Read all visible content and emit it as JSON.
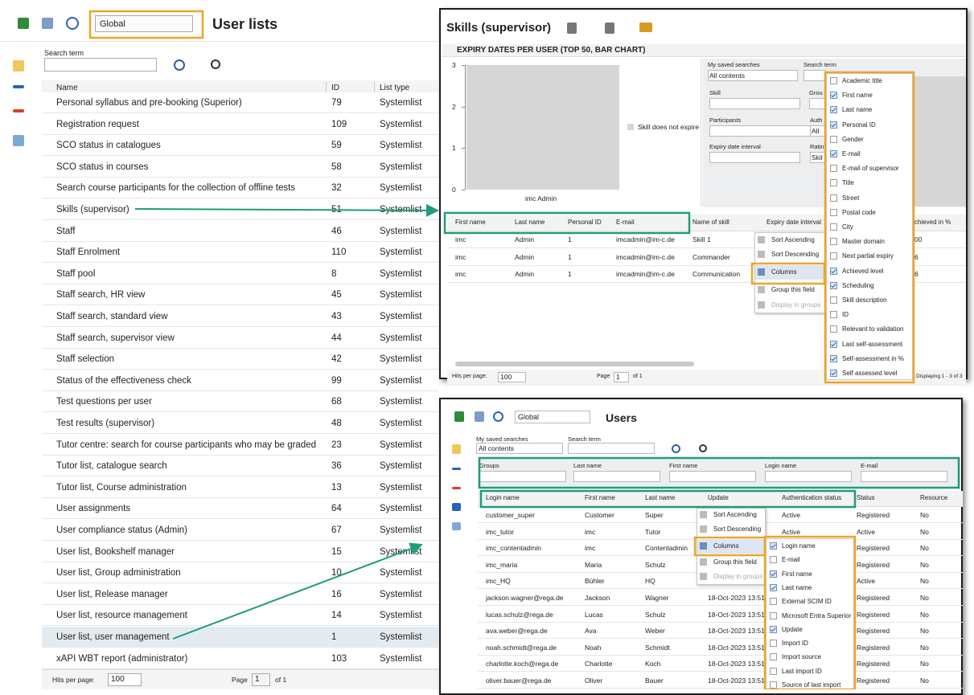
{
  "toolbar": {
    "scope": "Global",
    "title": "User lists"
  },
  "search": {
    "label": "Search term"
  },
  "list_table": {
    "columns": [
      "Name",
      "ID",
      "List type"
    ],
    "rows": [
      [
        "Personal syllabus and pre-booking (Superior)",
        79,
        "Systemlist"
      ],
      [
        "Registration request",
        109,
        "Systemlist"
      ],
      [
        "SCO status in catalogues",
        59,
        "Systemlist"
      ],
      [
        "SCO status in courses",
        58,
        "Systemlist"
      ],
      [
        "Search course participants for the collection of offline tests",
        32,
        "Systemlist"
      ],
      [
        "Skills (supervisor)",
        51,
        "Systemlist"
      ],
      [
        "Staff",
        46,
        "Systemlist"
      ],
      [
        "Staff Enrolment",
        110,
        "Systemlist"
      ],
      [
        "Staff pool",
        8,
        "Systemlist"
      ],
      [
        "Staff search, HR view",
        45,
        "Systemlist"
      ],
      [
        "Staff search, standard view",
        43,
        "Systemlist"
      ],
      [
        "Staff search, supervisor view",
        44,
        "Systemlist"
      ],
      [
        "Staff selection",
        42,
        "Systemlist"
      ],
      [
        "Status of the effectiveness check",
        99,
        "Systemlist"
      ],
      [
        "Test questions per user",
        68,
        "Systemlist"
      ],
      [
        "Test results (supervisor)",
        48,
        "Systemlist"
      ],
      [
        "Tutor centre: search for course participants who may be graded",
        23,
        "Systemlist"
      ],
      [
        "Tutor list, catalogue search",
        36,
        "Systemlist"
      ],
      [
        "Tutor list, Course administration",
        13,
        "Systemlist"
      ],
      [
        "User assignments",
        64,
        "Systemlist"
      ],
      [
        "User compliance status (Admin)",
        67,
        "Systemlist"
      ],
      [
        "User list, Bookshelf manager",
        15,
        "Systemlist"
      ],
      [
        "User list, Group administration",
        10,
        "Systemlist"
      ],
      [
        "User list, Release manager",
        16,
        "Systemlist"
      ],
      [
        "User list, resource management",
        14,
        "Systemlist"
      ],
      [
        "User list, user management",
        1,
        "Systemlist"
      ],
      [
        "xAPI WBT report (administrator)",
        103,
        "Systemlist"
      ]
    ]
  },
  "pagination": {
    "hits_label": "Hits per page:",
    "hits_per_page": 100,
    "page_label": "Page",
    "page": 1,
    "page_of": "of 1"
  },
  "skills_window": {
    "title": "Skills (supervisor)",
    "chart_header": "EXPIRY DATES PER USER (TOP 50, BAR CHART)",
    "chart": {
      "type": "bar",
      "categories": [
        "imc Admin"
      ],
      "values": [
        3
      ],
      "color": "#d6d6d6",
      "ylim": [
        0,
        3
      ],
      "yticks": [
        0,
        1,
        2,
        3
      ],
      "legend": "Skill does not expire"
    },
    "filters": [
      {
        "label": "My saved searches",
        "value": "All contents"
      },
      {
        "label": "Search term"
      },
      {
        "label": "Skill"
      },
      {
        "label": "Grou"
      },
      {
        "label": "Participants"
      },
      {
        "label": "Auth",
        "value": "All"
      },
      {
        "label": "Expiry date interval"
      },
      {
        "label": "Ratin",
        "value": "Skil"
      }
    ],
    "columns": [
      "First name",
      "Last name",
      "Personal ID",
      "E-mail",
      "Name of skill",
      "Expiry date interval",
      "chieved in %"
    ],
    "rows": [
      [
        "imc",
        "Admin",
        1,
        "imcadmin@im-c.de",
        "Skill 1",
        null,
        "00"
      ],
      [
        "imc",
        "Admin",
        1,
        "imcadmin@im-c.de",
        "Commander",
        null,
        "6"
      ],
      [
        "imc",
        "Admin",
        1,
        "imcadmin@im-c.de",
        "Communication",
        null,
        "6"
      ]
    ],
    "menu": [
      "Sort Ascending",
      "Sort Descending",
      "Columns",
      "Group this field",
      "Display in groups"
    ],
    "column_list": [
      {
        "label": "Academic title",
        "checked": false
      },
      {
        "label": "First name",
        "checked": true
      },
      {
        "label": "Last name",
        "checked": true
      },
      {
        "label": "Personal ID",
        "checked": true
      },
      {
        "label": "Gender",
        "checked": false
      },
      {
        "label": "E-mail",
        "checked": true
      },
      {
        "label": "E-mail of supervisor",
        "checked": false
      },
      {
        "label": "Title",
        "checked": false
      },
      {
        "label": "Street",
        "checked": false
      },
      {
        "label": "Postal code",
        "checked": false
      },
      {
        "label": "City",
        "checked": false
      },
      {
        "label": "Master domain",
        "checked": false
      },
      {
        "label": "Next partial expiry",
        "checked": false
      },
      {
        "label": "Achieved level",
        "checked": true
      },
      {
        "label": "Scheduling",
        "checked": true
      },
      {
        "label": "Skill description",
        "checked": false
      },
      {
        "label": "ID",
        "checked": false
      },
      {
        "label": "Relevant to validation",
        "checked": false
      },
      {
        "label": "Last self-assessment",
        "checked": true
      },
      {
        "label": "Self-assessment in %",
        "checked": true
      },
      {
        "label": "Self assessed level",
        "checked": true
      }
    ],
    "pagination": {
      "hits_label": "Hits per page:",
      "hits_per_page": 100,
      "page_label": "Page",
      "page": 1,
      "page_of": "of 1",
      "displaying": "Displaying 1 - 3 of 3"
    }
  },
  "users_window": {
    "scope": "Global",
    "title": "Users",
    "saved_label": "My saved searches",
    "saved_value": "All contents",
    "search_label": "Search term",
    "filters": [
      "Groups",
      "Last name",
      "First name",
      "Login name",
      "E-mail"
    ],
    "columns": [
      "Login name",
      "First name",
      "Last name",
      "Update",
      "Authentication status",
      "Status",
      "Resource"
    ],
    "rows": [
      [
        "customer_super",
        "Customer",
        "Super",
        null,
        "Active",
        "Registered",
        "No"
      ],
      [
        "imc_tutor",
        "imc",
        "Tutor",
        null,
        "Active",
        "Active",
        "No"
      ],
      [
        "imc_contentadmin",
        "imc",
        "Contentadmin",
        null,
        null,
        "Registered",
        "No"
      ],
      [
        "imc_maria",
        "Maria",
        "Schulz",
        null,
        null,
        "Registered",
        "No"
      ],
      [
        "imc_HQ",
        "Bühler",
        "HQ",
        null,
        null,
        "Active",
        "No"
      ],
      [
        "jackson.wagner@rega.de",
        "Jackson",
        "Wagner",
        "18-Oct-2023 13:51",
        null,
        "Registered",
        "No"
      ],
      [
        "lucas.schulz@rega.de",
        "Lucas",
        "Schulz",
        "18-Oct-2023 13:51",
        null,
        "Registered",
        "No"
      ],
      [
        "ava.weber@rega.de",
        "Ava",
        "Weber",
        "18-Oct-2023 13:51",
        null,
        "Registered",
        "No"
      ],
      [
        "noah.schmidt@rega.de",
        "Noah",
        "Schmidt",
        "18-Oct-2023 13:51",
        null,
        "Registered",
        "No"
      ],
      [
        "charlotte.koch@rega.de",
        "Charlotte",
        "Koch",
        "18-Oct-2023 13:51",
        null,
        "Registered",
        "No"
      ],
      [
        "oliver.bauer@rega.de",
        "Oliver",
        "Bauer",
        "18-Oct-2023 13:51",
        null,
        "Registered",
        "No"
      ]
    ],
    "menu": [
      "Sort Ascending",
      "Sort Descending",
      "Columns",
      "Group this field",
      "Display in groups"
    ],
    "column_list": [
      {
        "label": "Login name",
        "checked": true
      },
      {
        "label": "E-mail",
        "checked": false
      },
      {
        "label": "First name",
        "checked": true
      },
      {
        "label": "Last name",
        "checked": true
      },
      {
        "label": "External SCIM ID",
        "checked": false
      },
      {
        "label": "Microsoft Entra Superior",
        "checked": false
      },
      {
        "label": "Update",
        "checked": true
      },
      {
        "label": "Import ID",
        "checked": false
      },
      {
        "label": "Import source",
        "checked": false
      },
      {
        "label": "Last import ID",
        "checked": false
      },
      {
        "label": "Source of last import",
        "checked": false
      }
    ]
  }
}
